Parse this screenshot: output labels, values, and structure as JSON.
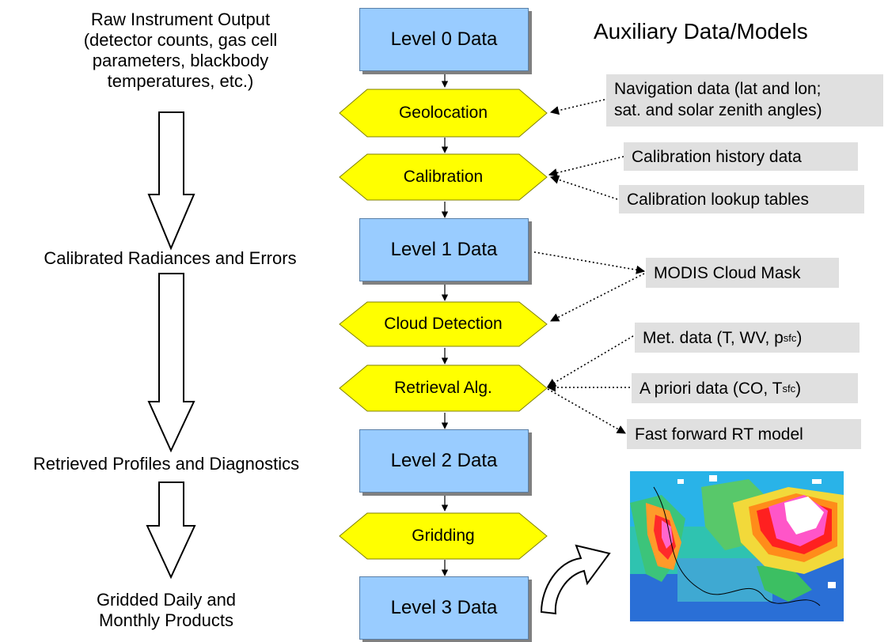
{
  "left_column": {
    "raw_output": [
      "Raw Instrument Output",
      "(detector counts, gas cell",
      "parameters, blackbody",
      "temperatures, etc.)"
    ],
    "calibrated": "Calibrated Radiances and Errors",
    "retrieved": "Retrieved Profiles and Diagnostics",
    "gridded": [
      "Gridded Daily and",
      "Monthly Products"
    ]
  },
  "levels": {
    "level0": "Level 0 Data",
    "level1": "Level 1 Data",
    "level2": "Level 2 Data",
    "level3": "Level 3 Data"
  },
  "steps": {
    "geolocation": "Geolocation",
    "calibration": "Calibration",
    "cloud_detection": "Cloud Detection",
    "retrieval": "Retrieval Alg.",
    "gridding": "Gridding"
  },
  "aux": {
    "title": "Auxiliary Data/Models",
    "navigation": [
      "Navigation data (lat and lon;",
      "sat. and solar zenith angles)"
    ],
    "cal_history": "Calibration history data",
    "cal_lookup": "Calibration lookup tables",
    "cloud_mask": "MODIS Cloud Mask",
    "met": {
      "text": "Met. data (T, WV, p",
      "sub": "sfc",
      "close": ")"
    },
    "apriori": {
      "text": "A priori data (CO, T",
      "sub": "sfc",
      "close": ")"
    },
    "fast_rt": "Fast forward RT model"
  },
  "colors": {
    "level_box": "#99ccff",
    "step_hex": "#ffff00",
    "aux_box": "#e0e0e0"
  }
}
